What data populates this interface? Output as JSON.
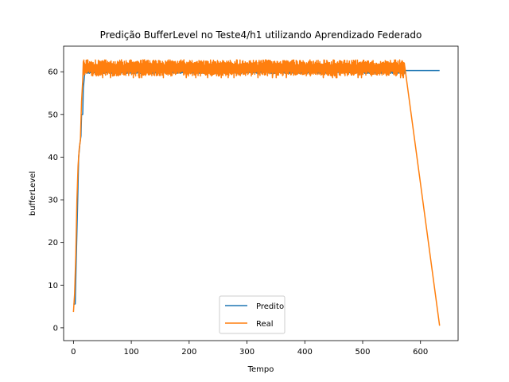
{
  "chart_data": {
    "type": "line",
    "title": "Predição BufferLevel no Teste4/h1 utilizando Aprendizado Federado",
    "xlabel": "Tempo",
    "ylabel": "bufferLevel",
    "xlim": [
      -17,
      665
    ],
    "ylim": [
      -3,
      66
    ],
    "xticks": [
      0,
      100,
      200,
      300,
      400,
      500,
      600
    ],
    "yticks": [
      0,
      10,
      20,
      30,
      40,
      50,
      60
    ],
    "grid": false,
    "legend_position": "lower center",
    "series": [
      {
        "name": "Predito",
        "color": "#1f77b4",
        "points": [
          [
            0,
            5.5
          ],
          [
            3,
            5.6
          ],
          [
            5,
            17
          ],
          [
            7,
            28
          ],
          [
            9,
            40
          ],
          [
            11,
            43
          ],
          [
            13,
            45
          ],
          [
            14,
            50
          ],
          [
            16,
            50
          ],
          [
            17,
            56
          ],
          [
            19,
            59
          ],
          [
            21,
            60
          ],
          [
            25,
            60.1
          ],
          [
            560,
            60.1
          ],
          [
            575,
            60.3
          ],
          [
            633,
            60.3
          ]
        ],
        "noise": {
          "x_start": 21,
          "x_end": 573,
          "low": 59.6,
          "high": 60.5
        }
      },
      {
        "name": "Real",
        "color": "#ff7f0e",
        "points": [
          [
            0,
            3.7
          ],
          [
            2,
            8
          ],
          [
            4,
            17
          ],
          [
            6,
            30
          ],
          [
            8,
            38
          ],
          [
            10,
            42
          ],
          [
            12,
            44
          ],
          [
            14,
            53
          ],
          [
            16,
            58
          ],
          [
            18,
            61
          ],
          [
            20,
            62
          ],
          [
            22,
            61
          ],
          [
            24,
            60
          ],
          [
            572,
            60.5
          ],
          [
            633,
            0.5
          ]
        ],
        "noise": {
          "x_start": 17,
          "x_end": 572,
          "low": 59.0,
          "high": 62.8,
          "dip_low": 58.6
        }
      }
    ]
  }
}
